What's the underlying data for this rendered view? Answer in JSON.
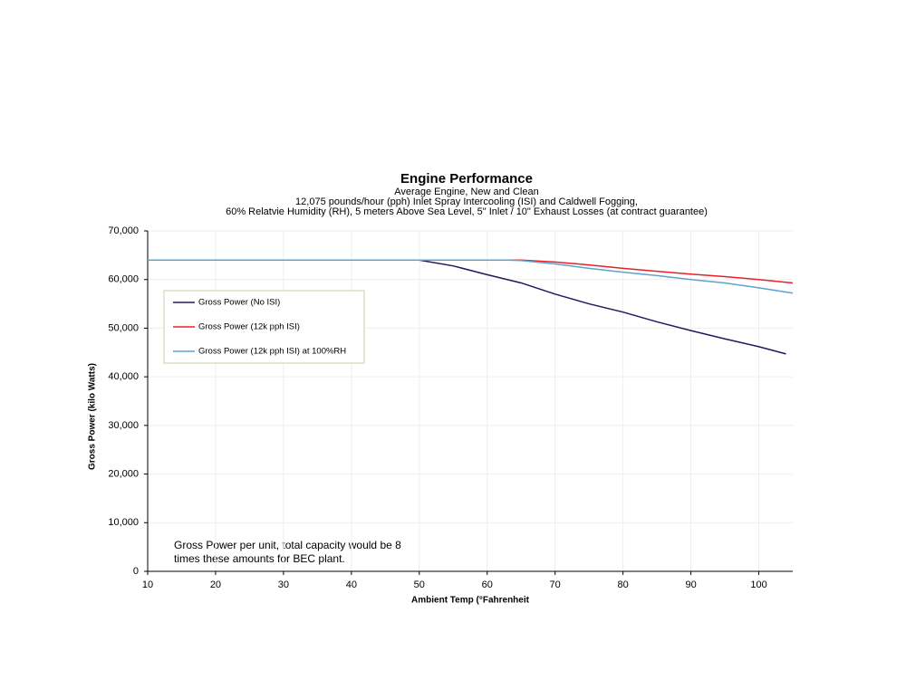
{
  "chart_data": {
    "type": "line",
    "title": "Engine Performance",
    "subtitle": [
      "Average Engine, New and Clean",
      "12,075 pounds/hour (pph) Inlet Spray Intercooling (ISI) and Caldwell Fogging,",
      "60% Relatvie Humidity (RH), 5 meters Above Sea Level, 5\" Inlet / 10\" Exhaust Losses (at contract guarantee)"
    ],
    "x_label": "Ambient Temp (°Fahrenheit",
    "y_label": "Gross Power (kilo Watts)",
    "annotation": [
      "Gross Power per unit, total capacity would be 8",
      "times these amounts for BEC plant."
    ],
    "xlim": [
      10,
      105
    ],
    "xticks": [
      10,
      20,
      30,
      40,
      50,
      60,
      70,
      80,
      90,
      100
    ],
    "ylim": [
      0,
      70000
    ],
    "yticks": [
      0,
      {
        "value": 10000,
        "label": "10,000"
      },
      {
        "value": 20000,
        "label": "20,000"
      },
      {
        "value": 30000,
        "label": "30,000"
      },
      {
        "value": 40000,
        "label": "40,000"
      },
      {
        "value": 50000,
        "label": "50,000"
      },
      {
        "value": 60000,
        "label": "60,000"
      },
      {
        "value": 70000,
        "label": "70,000"
      }
    ],
    "grid": true,
    "legend": "upper-left",
    "series": [
      {
        "name": "Gross Power (No ISI)",
        "color": "#1f1a5e",
        "x": [
          10,
          50,
          55,
          60,
          65,
          70,
          75,
          80,
          85,
          90,
          95,
          100,
          104
        ],
        "values": [
          64000,
          64000,
          62800,
          61000,
          59300,
          57000,
          55000,
          53300,
          51300,
          49500,
          47800,
          46200,
          44700
        ]
      },
      {
        "name": "Gross Power (12k pph ISI)",
        "color": "#e8202a",
        "x": [
          10,
          65,
          70,
          75,
          80,
          85,
          90,
          95,
          100,
          105
        ],
        "values": [
          64000,
          64000,
          63600,
          63000,
          62300,
          61700,
          61100,
          60600,
          60000,
          59300
        ]
      },
      {
        "name": "Gross Power (12k pph ISI) at 100%RH",
        "color": "#5ba3d0",
        "x": [
          10,
          63,
          65,
          70,
          75,
          80,
          85,
          90,
          95,
          100,
          105
        ],
        "values": [
          64000,
          64000,
          63900,
          63200,
          62300,
          61500,
          60800,
          60000,
          59300,
          58300,
          57200
        ]
      }
    ]
  }
}
